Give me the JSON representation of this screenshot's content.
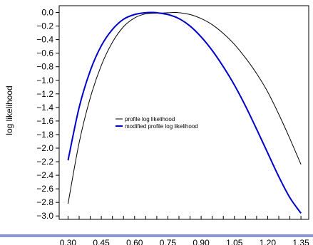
{
  "chart_data": {
    "type": "line",
    "title": "",
    "xlabel": "",
    "ylabel": "log likelihood",
    "xlim": [
      0.26,
      1.385
    ],
    "ylim": [
      -3.05,
      0.1
    ],
    "grid": false,
    "legend_placement": "center",
    "x_ticks": [
      0.3,
      0.45,
      0.6,
      0.75,
      0.9,
      1.05,
      1.2,
      1.35
    ],
    "x_tick_labels": [
      "0.30",
      "0.45",
      "0.60",
      "0.75",
      "0.90",
      "1.05",
      "1.20",
      "1.35"
    ],
    "x_minor_ticks": [
      0.3,
      0.35,
      0.4,
      0.45,
      0.5,
      0.55,
      0.6,
      0.65,
      0.7,
      0.75,
      0.8,
      0.85,
      0.9,
      0.95,
      1.0,
      1.05,
      1.1,
      1.15,
      1.2,
      1.25,
      1.3,
      1.35
    ],
    "y_ticks": [
      0.0,
      -0.2,
      -0.4,
      -0.6,
      -0.8,
      -1.0,
      -1.2,
      -1.4,
      -1.6,
      -1.8,
      -2.0,
      -2.2,
      -2.4,
      -2.6,
      -2.8,
      -3.0
    ],
    "y_tick_labels": [
      "0.0",
      "−0.2",
      "−0.4",
      "−0.6",
      "−0.8",
      "−1.0",
      "−1.2",
      "−1.4",
      "−1.6",
      "−1.8",
      "−2.0",
      "−2.2",
      "−2.4",
      "−2.6",
      "−2.8",
      "−3.0"
    ],
    "series": [
      {
        "name": "profile log likelihood",
        "color": "#000000",
        "x": [
          0.3,
          0.35,
          0.4,
          0.45,
          0.5,
          0.55,
          0.6,
          0.65,
          0.7,
          0.75,
          0.78,
          0.8,
          0.85,
          0.9,
          0.95,
          1.0,
          1.05,
          1.1,
          1.15,
          1.2,
          1.25,
          1.3,
          1.35
        ],
        "y": [
          -2.82,
          -1.92,
          -1.26,
          -0.78,
          -0.44,
          -0.21,
          -0.08,
          -0.02,
          -0.01,
          -0.004,
          0.0,
          -0.003,
          -0.03,
          -0.09,
          -0.18,
          -0.31,
          -0.47,
          -0.67,
          -0.9,
          -1.17,
          -1.5,
          -1.86,
          -2.24
        ]
      },
      {
        "name": "modified profile log likelihood",
        "color": "#0000cc",
        "x": [
          0.3,
          0.35,
          0.4,
          0.45,
          0.5,
          0.55,
          0.6,
          0.65,
          0.68,
          0.7,
          0.75,
          0.8,
          0.85,
          0.9,
          0.95,
          1.0,
          1.05,
          1.1,
          1.15,
          1.2,
          1.25,
          1.3,
          1.35
        ],
        "y": [
          -2.18,
          -1.4,
          -0.86,
          -0.49,
          -0.25,
          -0.1,
          -0.03,
          -0.003,
          0.0,
          -0.004,
          -0.03,
          -0.09,
          -0.2,
          -0.36,
          -0.56,
          -0.8,
          -1.07,
          -1.38,
          -1.72,
          -2.07,
          -2.42,
          -2.73,
          -2.96
        ]
      }
    ]
  }
}
